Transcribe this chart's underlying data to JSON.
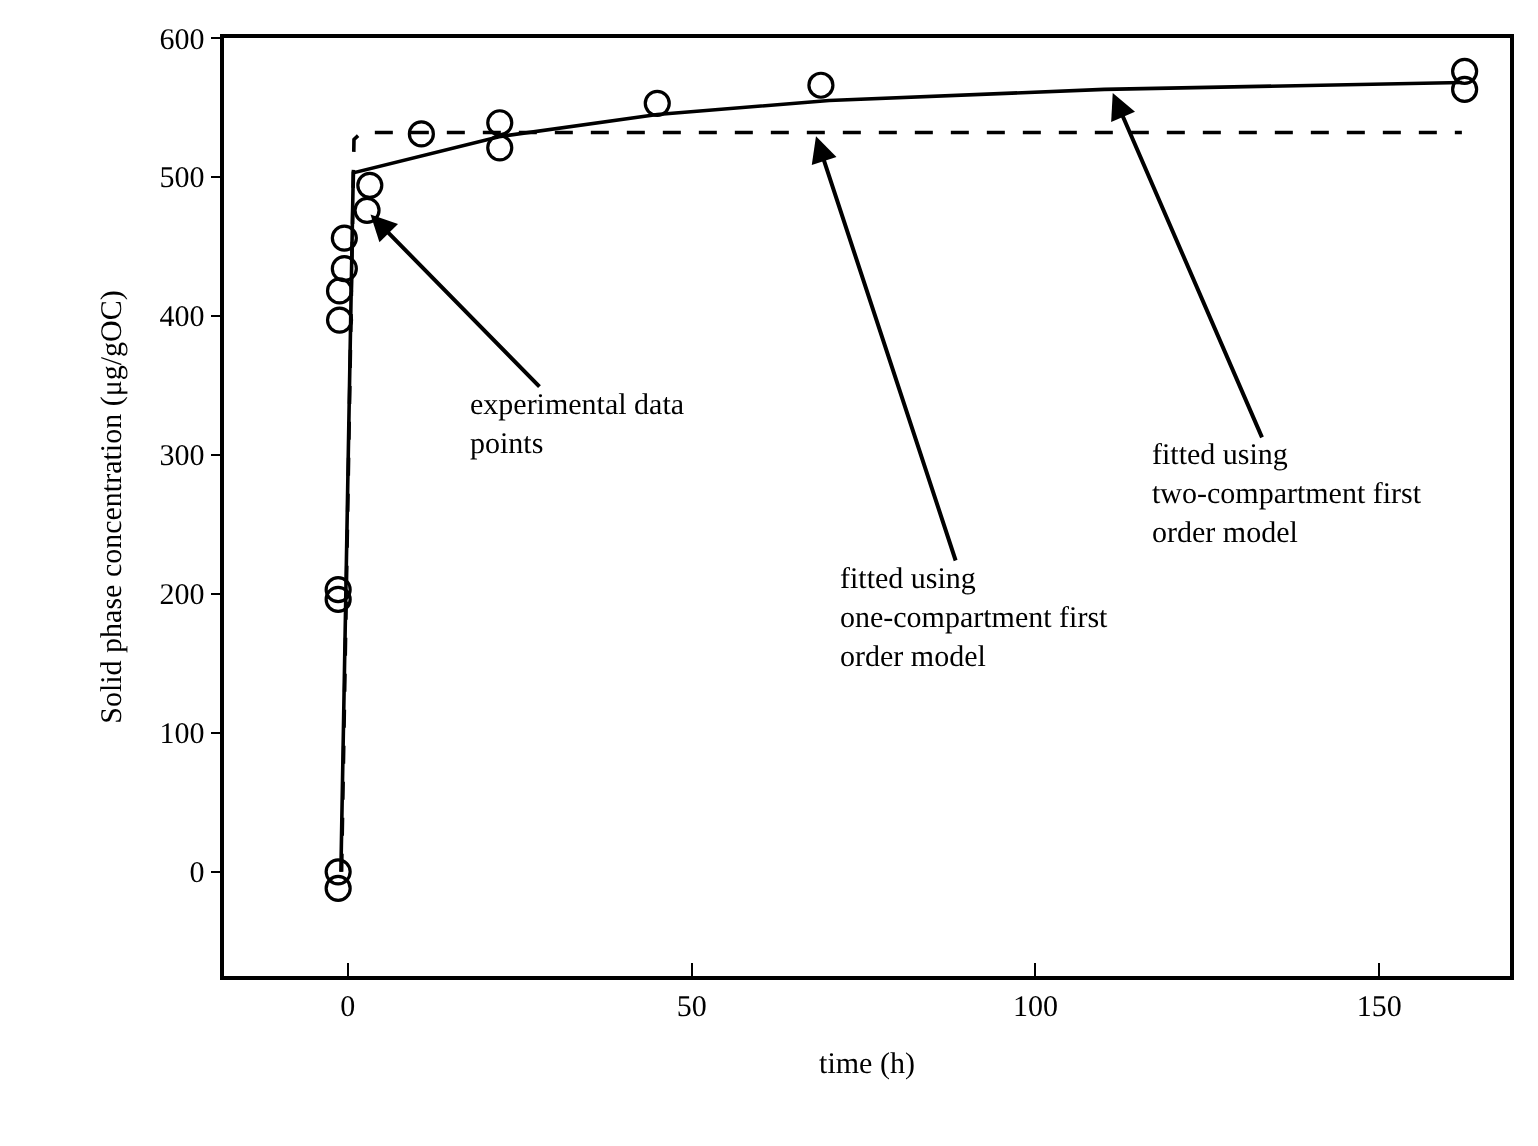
{
  "chart_data": {
    "type": "scatter",
    "xlabel": "time (h)",
    "ylabel": "Solid phase concentration (μg/gOC)",
    "xlim": [
      -18,
      169
    ],
    "xticks": [
      0,
      50,
      100,
      150
    ],
    "ylim": [
      -75,
      600
    ],
    "yticks": [
      0,
      100,
      200,
      300,
      400,
      500,
      600
    ],
    "legend": false,
    "series": [
      {
        "color": "#000000",
        "marker": "circle",
        "x": [
          -1.4,
          -1.4,
          -1.4,
          -1.4,
          -1.2,
          -1.2,
          -0.5,
          -0.5,
          2.8,
          3.2,
          10.7,
          22.1,
          22.1,
          45,
          68.8,
          162.4,
          162.4
        ],
        "values": [
          -12,
          0,
          196,
          203,
          397,
          418,
          434,
          456,
          476,
          494,
          531,
          539,
          521,
          553,
          566,
          576,
          563
        ]
      },
      {
        "type": "line",
        "color": "#000000",
        "marker": "none",
        "line_style": "solid",
        "x": [
          -1,
          0.8,
          22,
          45,
          70,
          110,
          162
        ],
        "values": [
          0,
          503,
          529,
          545,
          555,
          563,
          568
        ]
      },
      {
        "type": "line",
        "color": "#000000",
        "marker": "none",
        "line_style": "dashed",
        "x": [
          -0.9,
          0.9,
          2,
          162
        ],
        "values": [
          0,
          527,
          532,
          532
        ]
      }
    ],
    "annotations": [
      {
        "text": "experimental data\npoints",
        "x": 2.9,
        "y": 475
      },
      {
        "text": "fitted using\none-compartment first\norder model",
        "x": 67.9,
        "y": 532
      },
      {
        "text": "fitted using\ntwo-compartment first\norder model",
        "x": 111,
        "y": 563
      }
    ]
  }
}
